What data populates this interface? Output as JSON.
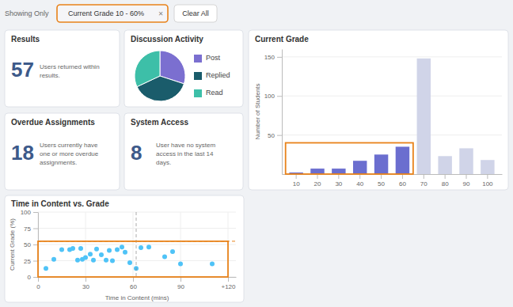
{
  "filter": {
    "label": "Showing Only",
    "tag": "Current Grade 10 - 60%",
    "remove": "✕",
    "clear": "Clear All",
    "color": "#e8821a"
  },
  "cards": [
    {
      "title": "Results",
      "value": 57,
      "text": [
        "Users returned within",
        "results."
      ]
    },
    {
      "title": "Overdue Assignments",
      "value": 18,
      "text": [
        "Users currently have",
        "one or more overdue",
        "assignments."
      ]
    },
    {
      "title": "System Access",
      "value": 8,
      "text": [
        "User have no system",
        "access in the last 14",
        "days."
      ]
    }
  ],
  "chart_data": [
    {
      "type": "pie",
      "title": "Discussion Activity",
      "categories": [
        "Post",
        "Replied",
        "Read"
      ],
      "values": [
        30,
        38,
        32
      ],
      "colors": [
        "#7b6fd0",
        "#1a5c6b",
        "#3dbfa8"
      ],
      "legend": "right"
    },
    {
      "type": "bar",
      "title": "Current Grade",
      "categories": [
        "10",
        "20",
        "30",
        "40",
        "50",
        "60",
        "70",
        "80",
        "90",
        "100"
      ],
      "values": [
        2,
        7,
        7,
        17,
        25,
        35,
        148,
        23,
        33,
        18
      ],
      "colors": [
        "#6b6ecf",
        "#6b6ecf",
        "#6b6ecf",
        "#6b6ecf",
        "#6b6ecf",
        "#6b6ecf",
        "#d0d4e8",
        "#d0d4e8",
        "#d0d4e8",
        "#d0d4e8"
      ],
      "y_label": "Number of Students",
      "ylim": [
        0,
        160
      ],
      "yticks": [
        50,
        100,
        150
      ],
      "grid": true,
      "highlight": {
        "categories": [
          "10",
          "60"
        ],
        "y": 40,
        "color": "#e8821a"
      }
    },
    {
      "type": "scatter",
      "title": "Time in Content vs. Grade",
      "x_label": "Time in Content (mins)",
      "y_label": "Current Grade (%)",
      "x": [
        5,
        10,
        15,
        20,
        22,
        25,
        27,
        28,
        30,
        33,
        35,
        37,
        40,
        43,
        45,
        47,
        50,
        53,
        55,
        58,
        62,
        65,
        70,
        80,
        85,
        90,
        110
      ],
      "values": [
        13,
        27,
        42,
        42,
        44,
        26,
        44,
        27,
        30,
        35,
        26,
        43,
        34,
        26,
        41,
        25,
        42,
        46,
        38,
        22,
        13,
        45,
        46,
        31,
        39,
        20,
        20
      ],
      "color": "#4fc3f7",
      "xlim": [
        0,
        125
      ],
      "xticks": [
        0,
        30,
        60,
        90,
        {
          "value": 120,
          "label": "+120"
        }
      ],
      "ylim": [
        0,
        100
      ],
      "yticks": [
        0,
        25,
        50,
        75,
        100
      ],
      "grid": true,
      "hline": 55,
      "hline_color": "#e8821a",
      "vline": 62,
      "highlight_x": [
        0,
        120
      ],
      "highlight_y": [
        0,
        55
      ],
      "highlight_color": "#e8821a"
    }
  ]
}
